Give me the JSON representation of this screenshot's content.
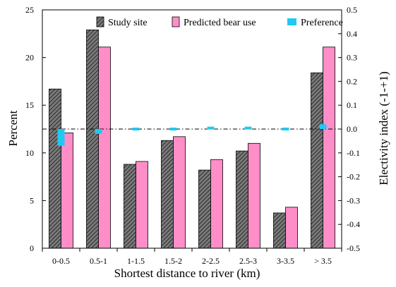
{
  "chart_data": {
    "type": "bar",
    "categories": [
      "0-0.5",
      "0.5-1",
      "1-1.5",
      "1.5-2",
      "2-2.5",
      "2.5-3",
      "3-3.5",
      "> 3.5"
    ],
    "xlabel": "Shortest distance to river (km)",
    "ylabel": "Percent",
    "y2label": "Electivity index (-1-+1)",
    "ylim": [
      0,
      25
    ],
    "y2lim": [
      -0.5,
      0.5
    ],
    "yticks": [
      "0",
      "5",
      "10",
      "15",
      "20",
      "25"
    ],
    "y2ticks": [
      "-0.5",
      "-0.4",
      "-0.3",
      "-0.2",
      "-0.1",
      "0.0",
      "0.1",
      "0.2",
      "0.3",
      "0.4",
      "0.5"
    ],
    "legend_position": "top",
    "grid": false,
    "reference_line_y2": 0.0,
    "series": [
      {
        "name": "Study site",
        "axis": "left",
        "kind": "bar",
        "color": "#555555",
        "pattern": "diagonal-hatch",
        "values": [
          16.7,
          22.9,
          8.8,
          11.3,
          8.2,
          10.2,
          3.7,
          18.4
        ]
      },
      {
        "name": "Predicted bear use",
        "axis": "left",
        "kind": "bar",
        "color": "#ff8ec8",
        "values": [
          12.1,
          21.1,
          9.1,
          11.7,
          9.3,
          11.0,
          4.3,
          21.1
        ]
      },
      {
        "name": "Preference",
        "axis": "right",
        "kind": "marker",
        "color": "#21c8f2",
        "values": [
          -0.07,
          -0.02,
          0.0,
          0.0,
          0.01,
          0.01,
          0.0,
          0.02
        ]
      }
    ]
  }
}
